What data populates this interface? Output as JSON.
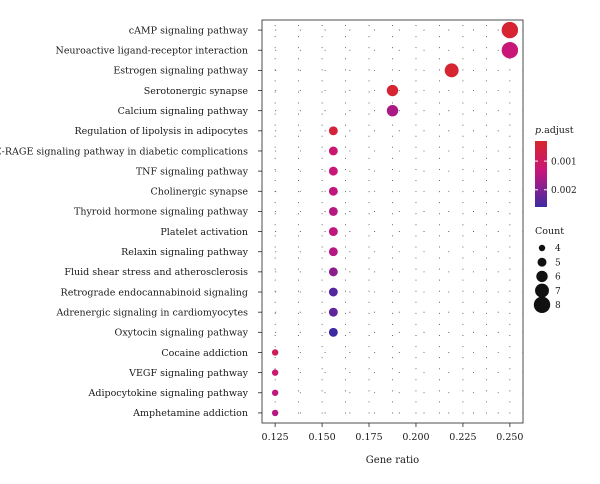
{
  "chart_data": {
    "type": "scatter",
    "title": "",
    "xlabel": "Gene ratio",
    "ylabel": "",
    "xlim": [
      0.118,
      0.257
    ],
    "xticks": [
      0.125,
      0.15,
      0.175,
      0.2,
      0.225,
      0.25
    ],
    "xtick_labels": [
      "0.125",
      "0.150",
      "0.175",
      "0.200",
      "0.225",
      "0.250"
    ],
    "grid": "dotted",
    "color_legend": {
      "title_italic": "p",
      "title_rest": ".adjust",
      "ticks": [
        0.001,
        0.002
      ],
      "tick_labels": [
        "0.001",
        "0.002"
      ],
      "range": [
        0.0003,
        0.0026
      ],
      "color_low": "#d7262b",
      "color_mid": "#c8157c",
      "color_high": "#3f2aa3",
      "placement": "right"
    },
    "size_legend": {
      "title": "Count",
      "values": [
        4,
        5,
        6,
        7,
        8
      ],
      "labels": [
        "4",
        "5",
        "6",
        "7",
        "8"
      ],
      "placement": "right"
    },
    "points": [
      {
        "pathway": "cAMP signaling pathway",
        "gene_ratio": 0.25,
        "count": 8,
        "p_adjust": 0.0004
      },
      {
        "pathway": "Neuroactive ligand-receptor interaction",
        "gene_ratio": 0.25,
        "count": 8,
        "p_adjust": 0.0013
      },
      {
        "pathway": "Estrogen signaling pathway",
        "gene_ratio": 0.219,
        "count": 7,
        "p_adjust": 0.0004
      },
      {
        "pathway": "Serotonergic synapse",
        "gene_ratio": 0.1875,
        "count": 6,
        "p_adjust": 0.0004
      },
      {
        "pathway": "Calcium signaling pathway",
        "gene_ratio": 0.1875,
        "count": 6,
        "p_adjust": 0.0016
      },
      {
        "pathway": "Regulation of lipolysis in adipocytes",
        "gene_ratio": 0.156,
        "count": 5,
        "p_adjust": 0.0005
      },
      {
        "pathway": "AGE-RAGE signaling pathway in diabetic complications",
        "gene_ratio": 0.156,
        "count": 5,
        "p_adjust": 0.0012
      },
      {
        "pathway": "TNF signaling pathway",
        "gene_ratio": 0.156,
        "count": 5,
        "p_adjust": 0.0013
      },
      {
        "pathway": "Cholinergic synapse",
        "gene_ratio": 0.156,
        "count": 5,
        "p_adjust": 0.0014
      },
      {
        "pathway": "Thyroid hormone signaling pathway",
        "gene_ratio": 0.156,
        "count": 5,
        "p_adjust": 0.0015
      },
      {
        "pathway": "Platelet activation",
        "gene_ratio": 0.156,
        "count": 5,
        "p_adjust": 0.0014
      },
      {
        "pathway": "Relaxin signaling pathway",
        "gene_ratio": 0.156,
        "count": 5,
        "p_adjust": 0.0015
      },
      {
        "pathway": "Fluid shear stress and atherosclerosis",
        "gene_ratio": 0.156,
        "count": 5,
        "p_adjust": 0.0019
      },
      {
        "pathway": "Retrograde endocannabinoid signaling",
        "gene_ratio": 0.156,
        "count": 5,
        "p_adjust": 0.0024
      },
      {
        "pathway": "Adrenergic signaling in cardiomyocytes",
        "gene_ratio": 0.156,
        "count": 5,
        "p_adjust": 0.0023
      },
      {
        "pathway": "Oxytocin signaling pathway",
        "gene_ratio": 0.156,
        "count": 5,
        "p_adjust": 0.0026
      },
      {
        "pathway": "Cocaine addiction",
        "gene_ratio": 0.125,
        "count": 4,
        "p_adjust": 0.0009
      },
      {
        "pathway": "VEGF signaling pathway",
        "gene_ratio": 0.125,
        "count": 4,
        "p_adjust": 0.0012
      },
      {
        "pathway": "Adipocytokine signaling pathway",
        "gene_ratio": 0.125,
        "count": 4,
        "p_adjust": 0.0014
      },
      {
        "pathway": "Amphetamine addiction",
        "gene_ratio": 0.125,
        "count": 4,
        "p_adjust": 0.0015
      }
    ]
  }
}
